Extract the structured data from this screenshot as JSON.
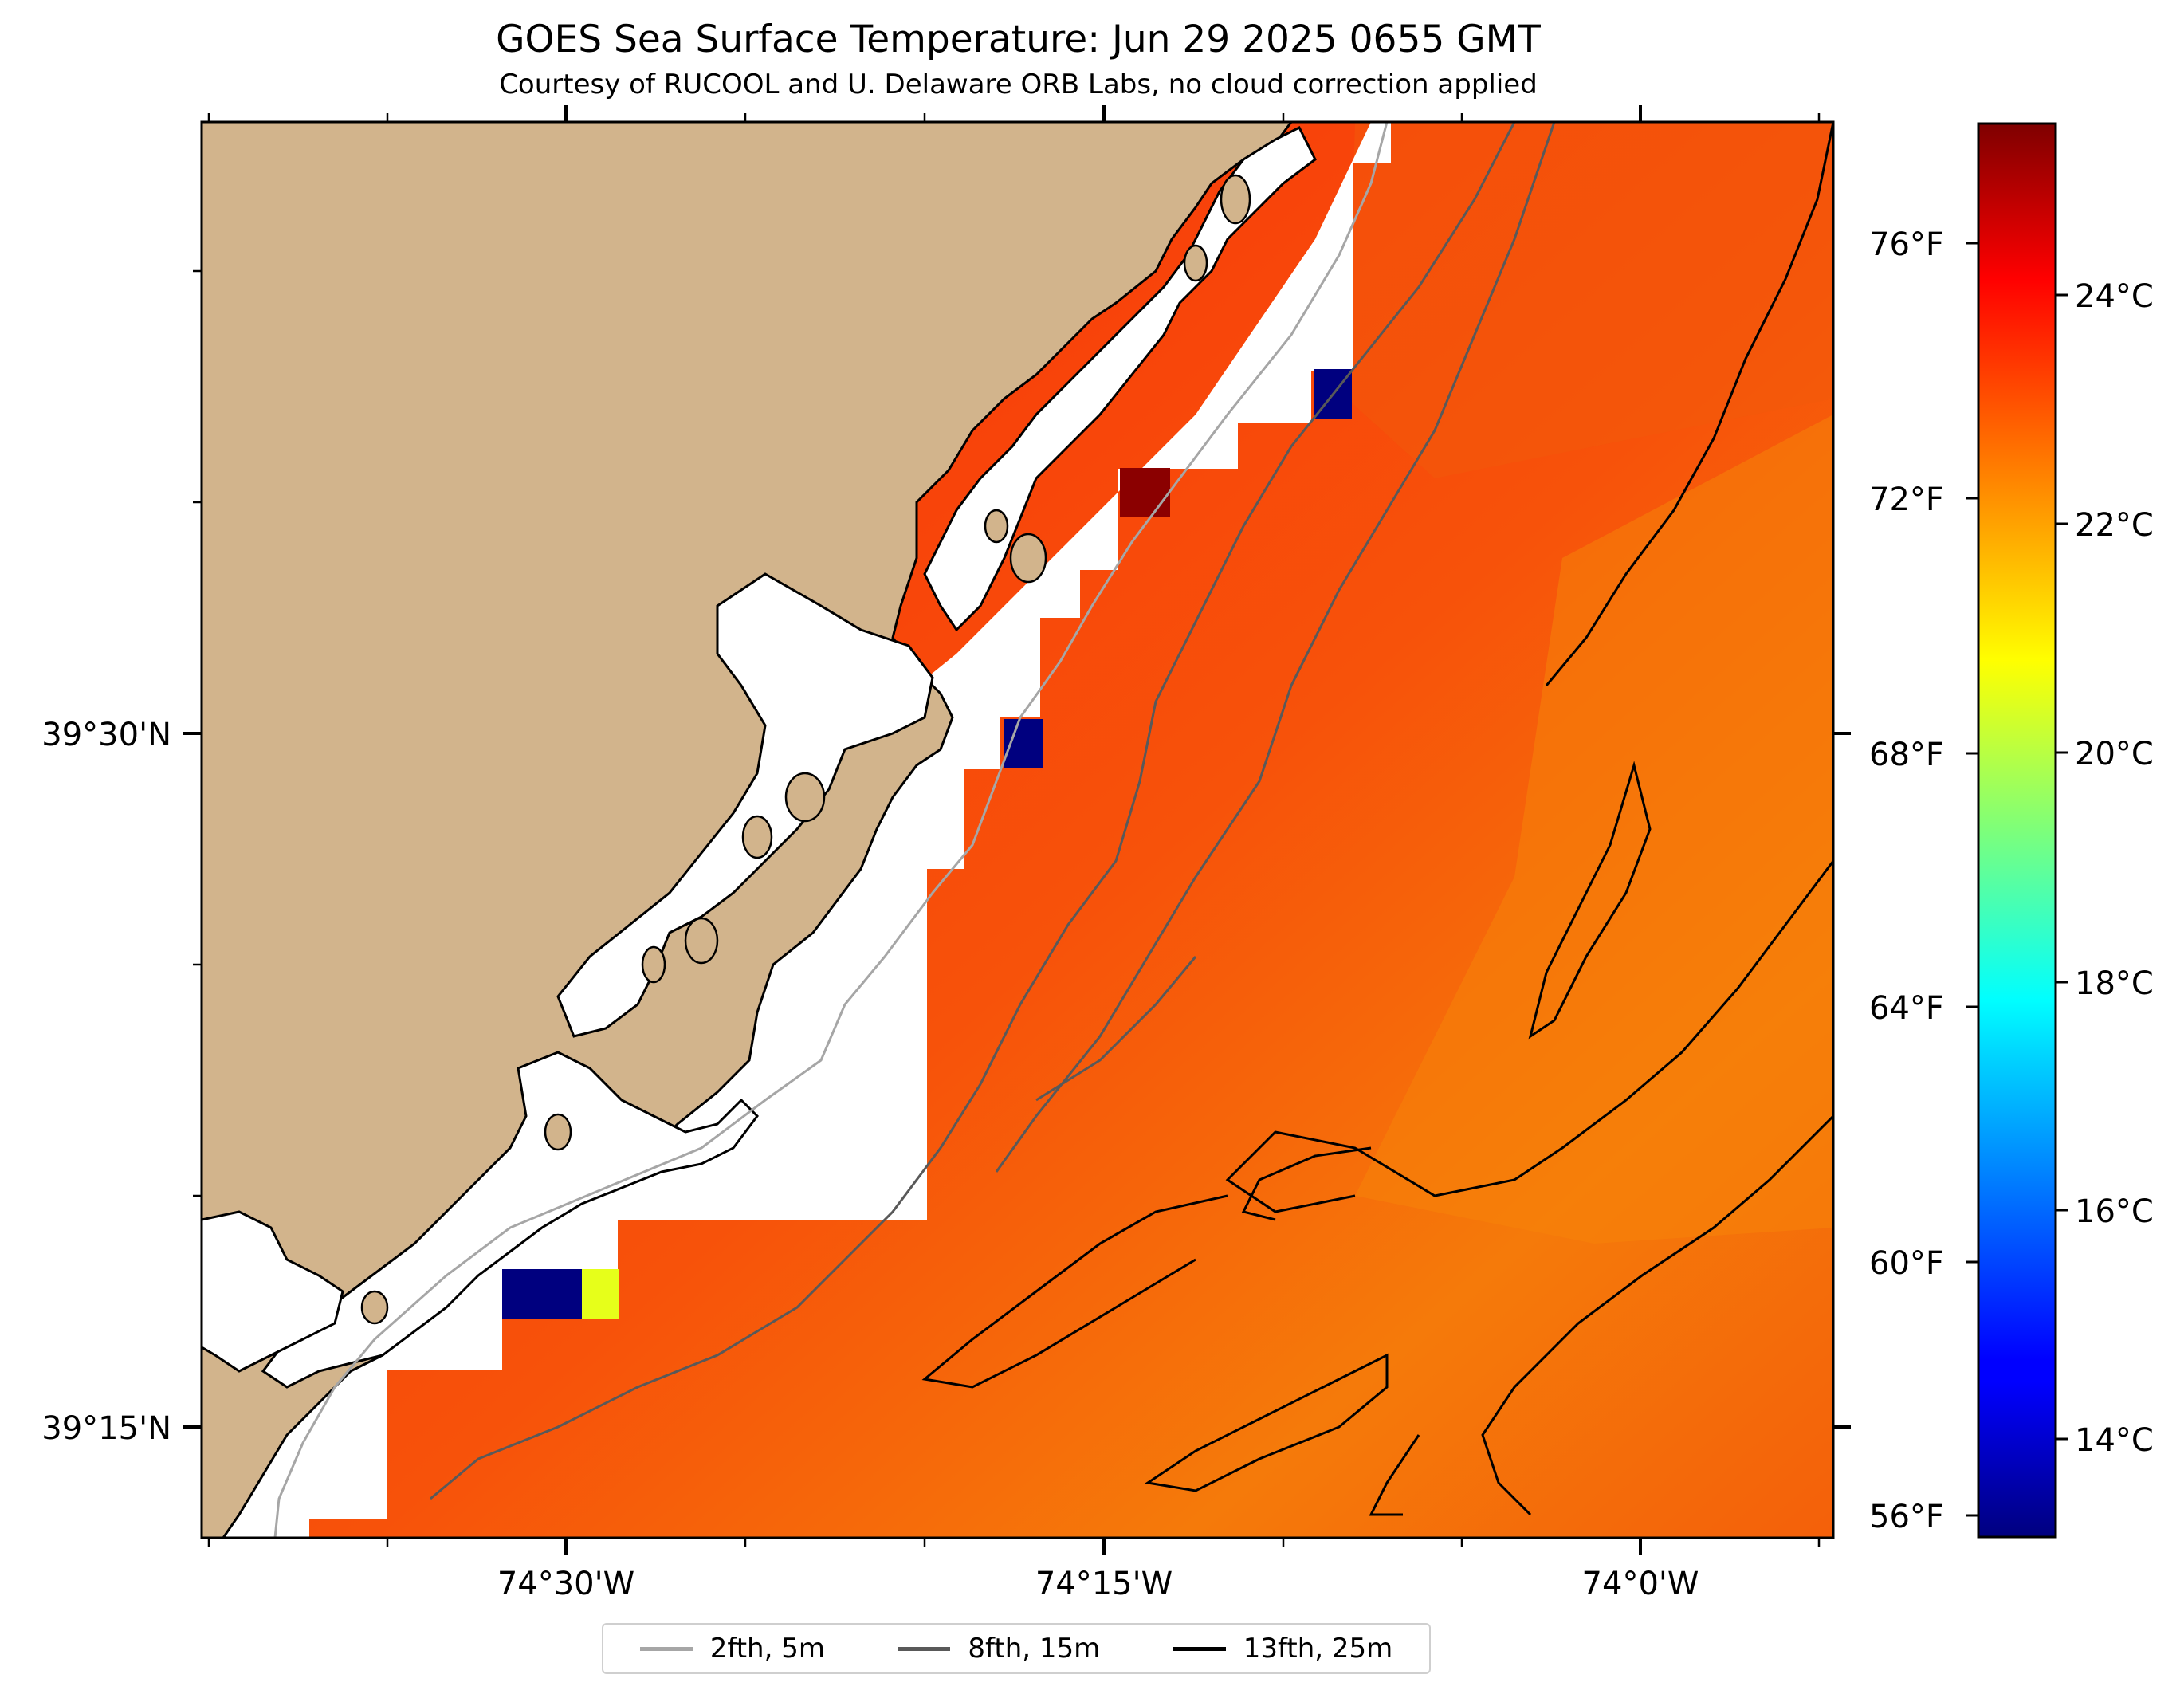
{
  "title": "GOES Sea Surface Temperature: Jun 29 2025 0655 GMT",
  "subtitle": "Courtesy of RUCOOL and U. Delaware ORB Labs, no cloud correction applied",
  "map": {
    "lat_labels": [
      "39°30'N",
      "39°15'N"
    ],
    "lon_labels": [
      "74°30'W",
      "74°15'W",
      "74°0'W"
    ],
    "colors": {
      "land": "#d2b48c",
      "coast": "#000000"
    }
  },
  "colorbar": {
    "celsius_labels": [
      "24°C",
      "22°C",
      "20°C",
      "18°C",
      "16°C",
      "14°C"
    ],
    "fahrenheit_labels": [
      "76°F",
      "72°F",
      "68°F",
      "64°F",
      "60°F",
      "56°F"
    ],
    "colormap": "jet"
  },
  "legend": {
    "items": [
      {
        "label": "2fth, 5m",
        "color": "#a6a6a6"
      },
      {
        "label": "8fth, 15m",
        "color": "#595959"
      },
      {
        "label": "13fth, 25m",
        "color": "#000000"
      }
    ]
  }
}
